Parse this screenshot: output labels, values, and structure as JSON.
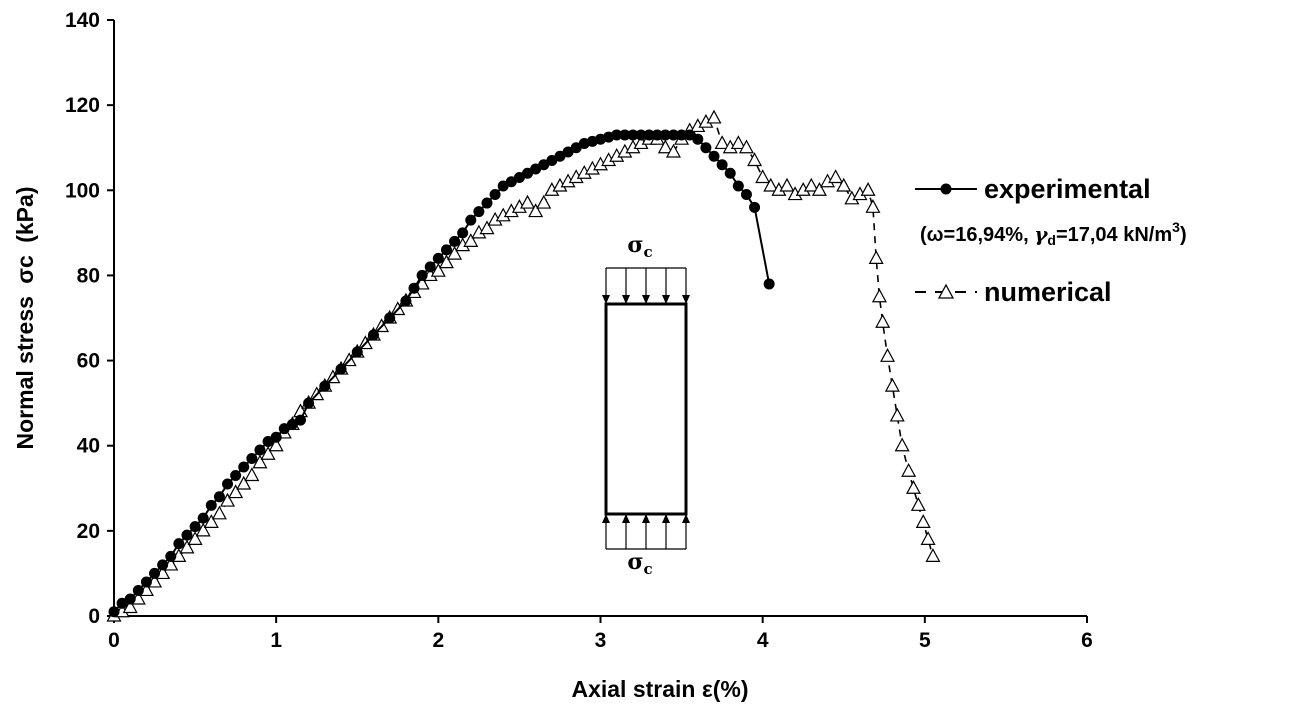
{
  "chart_data": {
    "type": "scatter",
    "xlabel": "Axial strain ε(%)",
    "ylabel_main": "Normal stress",
    "ylabel_symbol": "σc",
    "ylabel_unit": "(kPa)",
    "xlim": [
      0,
      6
    ],
    "ylim": [
      0,
      140
    ],
    "xticks": [
      "0",
      "1",
      "2",
      "3",
      "4",
      "5",
      "6"
    ],
    "yticks": [
      "0",
      "20",
      "40",
      "60",
      "80",
      "100",
      "120",
      "140"
    ],
    "grid": false,
    "legend_position": "right",
    "series": [
      {
        "name": "experimental",
        "marker": "filled-circle",
        "line": "solid",
        "color": "#000000",
        "x": [
          0.0,
          0.05,
          0.1,
          0.15,
          0.2,
          0.25,
          0.3,
          0.35,
          0.4,
          0.45,
          0.5,
          0.55,
          0.6,
          0.65,
          0.7,
          0.75,
          0.8,
          0.85,
          0.9,
          0.95,
          1.0,
          1.05,
          1.1,
          1.15,
          1.2,
          1.3,
          1.4,
          1.5,
          1.6,
          1.7,
          1.8,
          1.85,
          1.9,
          1.95,
          2.0,
          2.05,
          2.1,
          2.15,
          2.2,
          2.25,
          2.3,
          2.35,
          2.4,
          2.45,
          2.5,
          2.55,
          2.6,
          2.65,
          2.7,
          2.75,
          2.8,
          2.85,
          2.9,
          2.95,
          3.0,
          3.05,
          3.1,
          3.15,
          3.2,
          3.25,
          3.3,
          3.35,
          3.4,
          3.45,
          3.5,
          3.55,
          3.6,
          3.65,
          3.7,
          3.75,
          3.8,
          3.85,
          3.9,
          3.95,
          4.04
        ],
        "y": [
          1,
          3,
          4,
          6,
          8,
          10,
          12,
          14,
          17,
          19,
          21,
          23,
          26,
          28,
          31,
          33,
          35,
          37,
          39,
          41,
          42,
          44,
          45,
          46,
          50,
          54,
          58,
          62,
          66,
          70,
          74,
          77,
          80,
          82,
          84,
          86,
          88,
          90,
          93,
          95,
          97,
          99,
          101,
          102,
          103,
          104,
          105,
          106,
          107,
          108,
          109,
          110,
          111,
          111.5,
          112,
          112.5,
          113,
          113,
          113,
          113,
          113,
          113,
          113,
          113,
          113,
          113,
          112,
          110,
          108,
          106,
          104,
          101,
          99,
          96,
          78
        ]
      },
      {
        "name": "numerical",
        "marker": "open-triangle",
        "line": "dashed",
        "color": "#000000",
        "x": [
          0.0,
          0.05,
          0.1,
          0.15,
          0.2,
          0.25,
          0.3,
          0.35,
          0.4,
          0.45,
          0.5,
          0.55,
          0.6,
          0.65,
          0.7,
          0.75,
          0.8,
          0.85,
          0.9,
          0.95,
          1.0,
          1.05,
          1.1,
          1.15,
          1.2,
          1.25,
          1.3,
          1.35,
          1.4,
          1.45,
          1.5,
          1.55,
          1.6,
          1.65,
          1.7,
          1.75,
          1.8,
          1.85,
          1.9,
          1.95,
          2.0,
          2.05,
          2.1,
          2.15,
          2.2,
          2.25,
          2.3,
          2.35,
          2.4,
          2.45,
          2.5,
          2.55,
          2.6,
          2.65,
          2.7,
          2.75,
          2.8,
          2.85,
          2.9,
          2.95,
          3.0,
          3.05,
          3.1,
          3.15,
          3.2,
          3.25,
          3.3,
          3.35,
          3.4,
          3.45,
          3.5,
          3.55,
          3.6,
          3.65,
          3.7,
          3.75,
          3.8,
          3.85,
          3.9,
          3.95,
          4.0,
          4.05,
          4.1,
          4.15,
          4.2,
          4.25,
          4.3,
          4.35,
          4.4,
          4.45,
          4.5,
          4.55,
          4.6,
          4.65,
          4.68,
          4.7,
          4.72,
          4.74,
          4.77,
          4.8,
          4.83,
          4.86,
          4.9,
          4.93,
          4.96,
          4.99,
          5.02,
          5.05
        ],
        "y": [
          0,
          1,
          2,
          4,
          6,
          8,
          10,
          12,
          14,
          16,
          18,
          20,
          22,
          24,
          27,
          29,
          31,
          33,
          36,
          38,
          40,
          43,
          45,
          48,
          50,
          52,
          54,
          56,
          58,
          60,
          62,
          64,
          66,
          68,
          70,
          72,
          74,
          76,
          78,
          80,
          81,
          83,
          85,
          87,
          88,
          90,
          91,
          93,
          94,
          95,
          96,
          97,
          95,
          97,
          100,
          101,
          102,
          103,
          104,
          105,
          106,
          107,
          108,
          109,
          110,
          111,
          112,
          112,
          110,
          109,
          112,
          114,
          115,
          116,
          117,
          111,
          110,
          111,
          110,
          107,
          103,
          101,
          100,
          101,
          99,
          100,
          101,
          100,
          102,
          103,
          101,
          98,
          99,
          100,
          96,
          84,
          75,
          69,
          61,
          54,
          47,
          40,
          34,
          30,
          26,
          22,
          18,
          14
        ]
      }
    ],
    "annotation": {
      "note_prefix": "(ω=16,94%, ",
      "note_gamma": "γ",
      "note_gamma_sub": "d",
      "note_middle": "=17,04 kN/m",
      "note_sup": "3",
      "note_suffix": ")",
      "sigma_top": "σ",
      "sigma_top_sub": "c",
      "sigma_bottom": "σ",
      "sigma_bottom_sub": "c"
    }
  }
}
